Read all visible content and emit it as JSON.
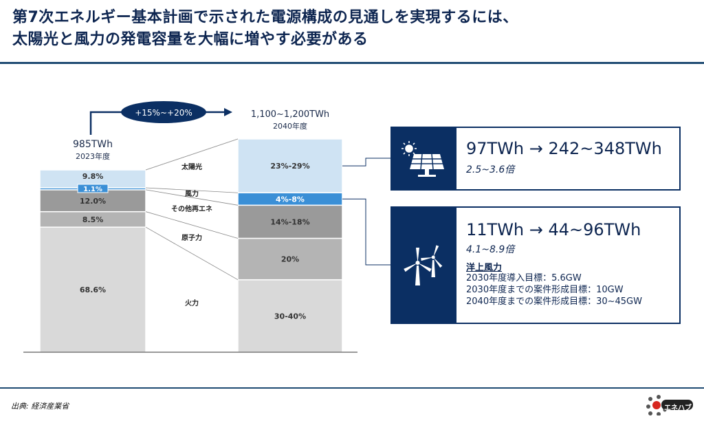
{
  "title": {
    "line1": "第7次エネルギー基本計画で示された電源構成の見通しを実現するには、",
    "line2": "太陽光と風力の発電容量を大幅に増やす必要がある"
  },
  "source": "出典: 経済産業省",
  "logo_label": "エネハブ",
  "colors": {
    "navy": "#0b2f63",
    "solar": "#cfe3f3",
    "wind": "#3a8fd6",
    "other_renewable": "#9a9a9a",
    "nuclear": "#b4b4b4",
    "thermal": "#d9d9d9"
  },
  "chart_data": {
    "type": "bar",
    "stacked": true,
    "categories": [
      "2023年度",
      "2040年度"
    ],
    "totals": [
      "985TWh",
      "1,100~1,200TWh"
    ],
    "growth_label": "+15%~+20%",
    "series": [
      {
        "name": "火力",
        "values": [
          68.6,
          35
        ],
        "labels": [
          "68.6%",
          "30-40%"
        ]
      },
      {
        "name": "原子力",
        "values": [
          8.5,
          20
        ],
        "labels": [
          "8.5%",
          "20%"
        ]
      },
      {
        "name": "その他再エネ",
        "values": [
          12.0,
          16
        ],
        "labels": [
          "12.0%",
          "14%-18%"
        ]
      },
      {
        "name": "風力",
        "values": [
          1.1,
          6
        ],
        "labels": [
          "1.1%",
          "4%-8%"
        ]
      },
      {
        "name": "太陽光",
        "values": [
          9.8,
          26
        ],
        "labels": [
          "9.8%",
          "23%-29%"
        ]
      }
    ]
  },
  "solar_card": {
    "icon": "solar-panel-icon",
    "main": "97TWh → 242~348TWh",
    "sub": "2.5~3.6倍"
  },
  "wind_card": {
    "icon": "wind-turbine-icon",
    "main": "11TWh → 44~96TWh",
    "sub": "4.1~8.9倍",
    "target_title": "洋上風力",
    "targets": [
      "2030年度導入目標：5.6GW",
      "2030年度までの案件形成目標：10GW",
      "2040年度までの案件形成目標：30~45GW"
    ]
  }
}
